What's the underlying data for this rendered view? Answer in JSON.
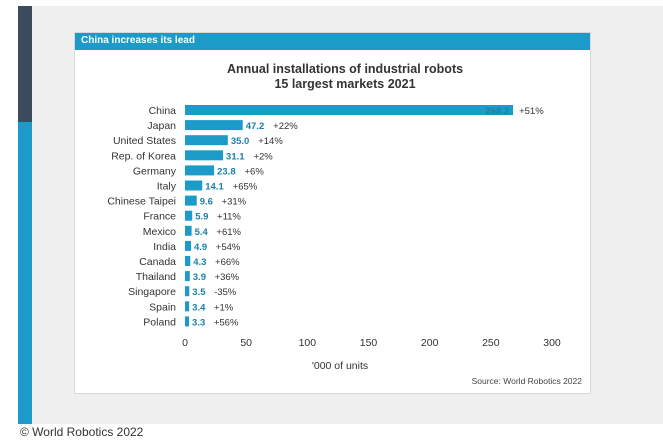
{
  "card_header": "China increases its lead",
  "footer": "© World Robotics 2022",
  "colors": {
    "bar": "#1d9bc8",
    "header": "#1d9bc8",
    "sidebar_dark": "#3b4a5c"
  },
  "chart_data": {
    "type": "bar",
    "orientation": "horizontal",
    "title": "Annual installations of industrial robots",
    "subtitle": "15 largest markets 2021",
    "xlabel": "'000 of units",
    "ylabel": "",
    "source": "Source: World Robotics 2022",
    "xlim": [
      0,
      300
    ],
    "xticks": [
      0,
      50,
      100,
      150,
      200,
      250,
      300
    ],
    "categories": [
      "China",
      "Japan",
      "United States",
      "Rep. of Korea",
      "Germany",
      "Italy",
      "Chinese Taipei",
      "France",
      "Mexico",
      "India",
      "Canada",
      "Thailand",
      "Singapore",
      "Spain",
      "Poland"
    ],
    "values": [
      268.2,
      47.2,
      35.0,
      31.1,
      23.8,
      14.1,
      9.6,
      5.9,
      5.4,
      4.9,
      4.3,
      3.9,
      3.5,
      3.4,
      3.3
    ],
    "value_labels": [
      "268.2",
      "47.2",
      "35.0",
      "31.1",
      "23.8",
      "14.1",
      "9.6",
      "5.9",
      "5.4",
      "4.9",
      "4.3",
      "3.9",
      "3.5",
      "3.4",
      "3.3"
    ],
    "changes": [
      "+51%",
      "+22%",
      "+14%",
      "+2%",
      "+6%",
      "+65%",
      "+31%",
      "+11%",
      "+61%",
      "+54%",
      "+66%",
      "+36%",
      "-35%",
      "+1%",
      "+56%"
    ]
  }
}
